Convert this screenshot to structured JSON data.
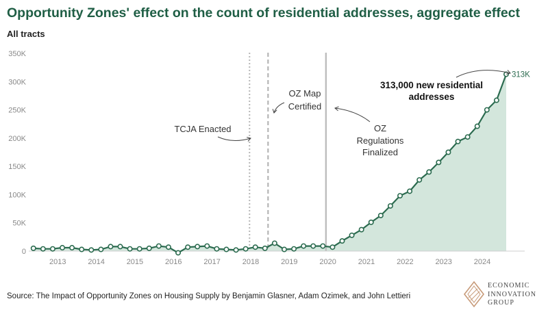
{
  "header": {
    "title": "Opportunity Zones' effect on the count of residential addresses, aggregate effect",
    "subtitle": "All tracts"
  },
  "footer": {
    "source": "Source: The Impact of Opportunity Zones on Housing Supply by Benjamin Glasner, Adam Ozimek, and John Lettieri"
  },
  "logo": {
    "line1": "ECONOMIC",
    "line2": "INNOVATION",
    "line3": "GROUP"
  },
  "colors": {
    "title": "#1f5e45",
    "line": "#2b6b4f",
    "area": "#d3e6dc",
    "marker_fill": "#ffffff",
    "axis_text": "#888888",
    "logo": "#c79a78"
  },
  "chart_data": {
    "type": "area",
    "title": "Opportunity Zones' effect on the count of residential addresses, aggregate effect",
    "subtitle": "All tracts",
    "xlim": [
      2012.25,
      2025.1
    ],
    "ylim": [
      0,
      350000
    ],
    "grid": false,
    "x_ticks": [
      2013,
      2014,
      2015,
      2016,
      2017,
      2018,
      2019,
      2020,
      2021,
      2022,
      2023,
      2024
    ],
    "x_tick_labels": [
      "2013",
      "2014",
      "2015",
      "2016",
      "2017",
      "2018",
      "2019",
      "2020",
      "2021",
      "2022",
      "2023",
      "2024"
    ],
    "y_ticks": [
      0,
      50000,
      100000,
      150000,
      200000,
      250000,
      300000,
      350000
    ],
    "y_tick_labels": [
      "0",
      "50K",
      "100K",
      "150K",
      "200K",
      "250K",
      "300K",
      "350K"
    ],
    "x": [
      2012.37,
      2012.62,
      2012.87,
      2013.12,
      2013.37,
      2013.62,
      2013.87,
      2014.12,
      2014.37,
      2014.62,
      2014.87,
      2015.12,
      2015.37,
      2015.62,
      2015.87,
      2016.12,
      2016.37,
      2016.62,
      2016.87,
      2017.12,
      2017.37,
      2017.62,
      2017.87,
      2018.12,
      2018.37,
      2018.62,
      2018.87,
      2019.12,
      2019.37,
      2019.62,
      2019.87,
      2020.12,
      2020.37,
      2020.62,
      2020.87,
      2021.12,
      2021.37,
      2021.62,
      2021.87,
      2022.12,
      2022.37,
      2022.62,
      2022.87,
      2023.12,
      2023.37,
      2023.62,
      2023.87,
      2024.12,
      2024.37,
      2024.62
    ],
    "values": [
      5000,
      4000,
      4000,
      6000,
      6000,
      3000,
      2000,
      3000,
      8000,
      8000,
      4000,
      4000,
      5000,
      9000,
      7000,
      -3000,
      7000,
      8000,
      9000,
      4000,
      3000,
      2000,
      4000,
      7000,
      5000,
      14000,
      3000,
      4000,
      9000,
      9000,
      9000,
      7000,
      18000,
      28000,
      38000,
      51000,
      63000,
      80000,
      98000,
      106000,
      126000,
      140000,
      157000,
      175000,
      194000,
      202000,
      221000,
      250000,
      267000,
      313000
    ],
    "end_label": "313K",
    "vertical_lines": [
      {
        "x": 2017.97,
        "style": "dotted"
      },
      {
        "x": 2018.45,
        "style": "dashed"
      },
      {
        "x": 2019.95,
        "style": "solid"
      }
    ],
    "annotations": {
      "tcja": "TCJA Enacted",
      "oz_map_1": "OZ Map",
      "oz_map_2": "Certified",
      "oz_reg_1": "OZ",
      "oz_reg_2": "Regulations",
      "oz_reg_3": "Finalized",
      "total_1": "313,000 new residential",
      "total_2": "addresses"
    }
  }
}
